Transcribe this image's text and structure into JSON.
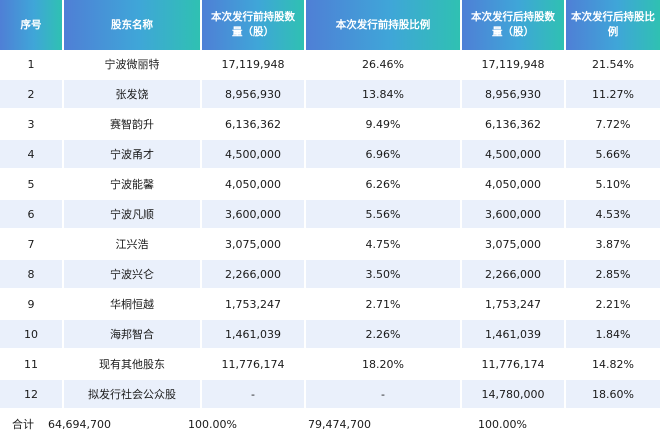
{
  "table": {
    "headers": [
      "序号",
      "股东名称",
      "本次发行前持股数量（股）",
      "本次发行前持股比例",
      "本次发行后持股数量（股）",
      "本次发行后持股比例"
    ],
    "rows": [
      [
        "1",
        "宁波微丽特",
        "17,119,948",
        "26.46%",
        "17,119,948",
        "21.54%"
      ],
      [
        "2",
        "张发饶",
        "8,956,930",
        "13.84%",
        "8,956,930",
        "11.27%"
      ],
      [
        "3",
        "赛智韵升",
        "6,136,362",
        "9.49%",
        "6,136,362",
        "7.72%"
      ],
      [
        "4",
        "宁波甬才",
        "4,500,000",
        "6.96%",
        "4,500,000",
        "5.66%"
      ],
      [
        "5",
        "宁波能馨",
        "4,050,000",
        "6.26%",
        "4,050,000",
        "5.10%"
      ],
      [
        "6",
        "宁波凡顺",
        "3,600,000",
        "5.56%",
        "3,600,000",
        "4.53%"
      ],
      [
        "7",
        "江兴浩",
        "3,075,000",
        "4.75%",
        "3,075,000",
        "3.87%"
      ],
      [
        "8",
        "宁波兴仑",
        "2,266,000",
        "3.50%",
        "2,266,000",
        "2.85%"
      ],
      [
        "9",
        "华桐恒越",
        "1,753,247",
        "2.71%",
        "1,753,247",
        "2.21%"
      ],
      [
        "10",
        "海邦智合",
        "1,461,039",
        "2.26%",
        "1,461,039",
        "1.84%"
      ],
      [
        "11",
        "现有其他股东",
        "11,776,174",
        "18.20%",
        "11,776,174",
        "14.82%"
      ],
      [
        "12",
        "拟发行社会公众股",
        "-",
        "-",
        "14,780,000",
        "18.60%"
      ]
    ],
    "total": {
      "label": "合计",
      "before_shares": "64,694,700",
      "before_ratio": "100.00%",
      "after_shares": "79,474,700",
      "after_ratio": "100.00%"
    }
  }
}
